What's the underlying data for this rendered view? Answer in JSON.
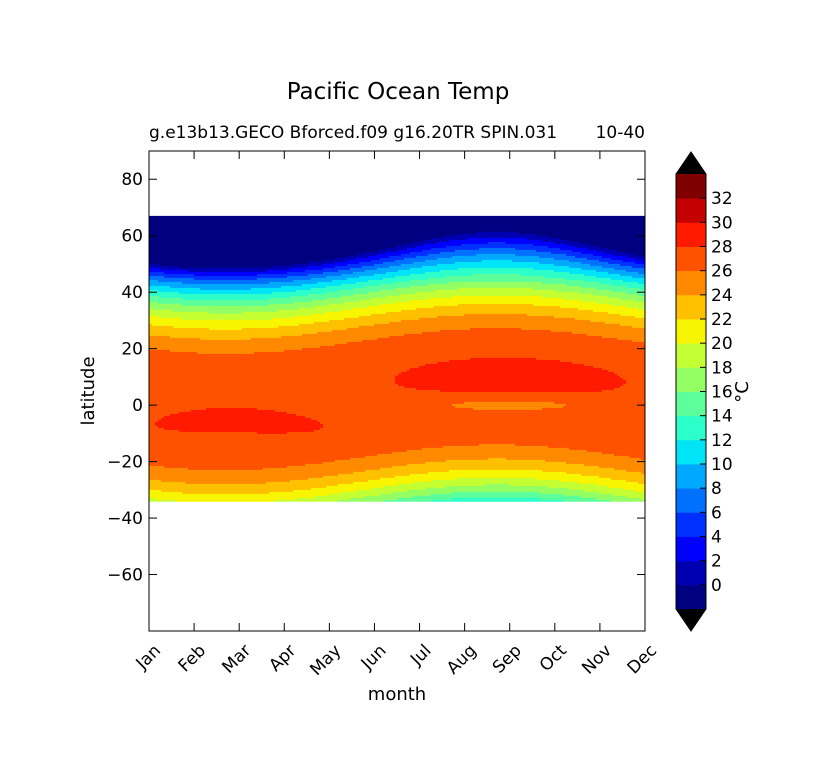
{
  "chart_data": {
    "type": "heatmap",
    "subtype": "filled-contour",
    "title": "Pacific Ocean Temp",
    "subtitle_left": "g.e13b13.GECO Bforced.f09 g16.20TR SPIN.031",
    "subtitle_right": "10-40",
    "xlabel": "month",
    "ylabel": "latitude",
    "x_categories": [
      "Jan",
      "Feb",
      "Mar",
      "Apr",
      "May",
      "Jun",
      "Jul",
      "Aug",
      "Sep",
      "Oct",
      "Nov",
      "Dec"
    ],
    "xlim": [
      0,
      11
    ],
    "ylim": [
      -80,
      90
    ],
    "yticks": [
      80,
      60,
      40,
      20,
      0,
      -20,
      -40,
      -60
    ],
    "ytick_labels": [
      "80",
      "60",
      "40",
      "20",
      "0",
      "−20",
      "−40",
      "−60"
    ],
    "data_lat_range": [
      -34,
      67
    ],
    "colorbar": {
      "label": "°C",
      "levels": [
        -2,
        0,
        2,
        4,
        6,
        8,
        10,
        12,
        14,
        16,
        18,
        20,
        22,
        24,
        26,
        28,
        30,
        32,
        34
      ],
      "tick_values": [
        0,
        2,
        4,
        6,
        8,
        10,
        12,
        14,
        16,
        18,
        20,
        22,
        24,
        26,
        28,
        30,
        32
      ],
      "tick_labels": [
        "0",
        "2",
        "4",
        "6",
        "8",
        "10",
        "12",
        "14",
        "16",
        "18",
        "20",
        "22",
        "24",
        "26",
        "28",
        "30",
        "32"
      ],
      "colors": [
        "#000080",
        "#0000b2",
        "#0000ff",
        "#0030ff",
        "#0070ff",
        "#00a8ff",
        "#00e4f8",
        "#2cffca",
        "#5cff9a",
        "#94ff62",
        "#c4ff33",
        "#f8f500",
        "#ffc000",
        "#ff8a00",
        "#ff5200",
        "#ff1a00",
        "#c40000",
        "#800000"
      ],
      "extend_low_color": "#000000",
      "extend_high_color": "#000000"
    },
    "grid": false,
    "legend": "colorbar-right"
  }
}
